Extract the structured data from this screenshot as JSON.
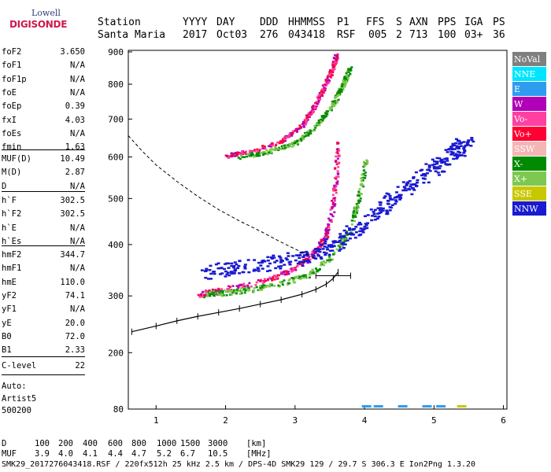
{
  "logo": {
    "line1": "Lowell",
    "line2": "DIGISONDE"
  },
  "header": {
    "labels": [
      "Station",
      "YYYY",
      "DAY",
      "DDD",
      "HHMMSS",
      "P1",
      "FFS",
      "S",
      "AXN",
      "PPS",
      "IGA",
      "PS"
    ],
    "values": [
      "Santa Maria",
      "2017",
      "Oct03",
      "276",
      "043418",
      "RSF",
      "005",
      "2",
      "713",
      "100",
      "03+",
      "36"
    ]
  },
  "scaled": {
    "group1": [
      {
        "label": "foF2",
        "value": "3.650"
      },
      {
        "label": "foF1",
        "value": "N/A"
      },
      {
        "label": "foF1p",
        "value": "N/A"
      },
      {
        "label": "foE",
        "value": "N/A"
      },
      {
        "label": "foEp",
        "value": "0.39"
      },
      {
        "label": "fxI",
        "value": "4.03"
      },
      {
        "label": "foEs",
        "value": "N/A"
      },
      {
        "label": "fmin",
        "value": "1.63"
      }
    ],
    "group2": [
      {
        "label": "MUF(D)",
        "value": "10.49"
      },
      {
        "label": "M(D)",
        "value": "2.87"
      },
      {
        "label": "D",
        "value": "N/A"
      }
    ],
    "group3": [
      {
        "label": "h`F",
        "value": "302.5"
      },
      {
        "label": "h`F2",
        "value": "302.5"
      },
      {
        "label": "h`E",
        "value": "N/A"
      },
      {
        "label": "h`Es",
        "value": "N/A"
      }
    ],
    "group4": [
      {
        "label": "hmF2",
        "value": "344.7"
      },
      {
        "label": "hmF1",
        "value": "N/A"
      },
      {
        "label": "hmE",
        "value": "110.0"
      },
      {
        "label": "yF2",
        "value": "74.1"
      },
      {
        "label": "yF1",
        "value": "N/A"
      },
      {
        "label": "yE",
        "value": "20.0"
      },
      {
        "label": "B0",
        "value": "72.0"
      },
      {
        "label": "B1",
        "value": "2.33"
      }
    ],
    "group5": [
      {
        "label": "C-level",
        "value": "22"
      }
    ]
  },
  "autoscaling": {
    "line1": "Auto:",
    "line2": "Artist5",
    "line3": "500200"
  },
  "legend": [
    {
      "label": "NoVal",
      "color": "#7f7f7f"
    },
    {
      "label": "NNE",
      "color": "#00e5ff"
    },
    {
      "label": "E",
      "color": "#2f9cf0"
    },
    {
      "label": "W",
      "color": "#b000b8"
    },
    {
      "label": "Vo-",
      "color": "#ff40a0"
    },
    {
      "label": "Vo+",
      "color": "#ff0033"
    },
    {
      "label": "SSW",
      "color": "#f4b5b5"
    },
    {
      "label": "X-",
      "color": "#008a00"
    },
    {
      "label": "X+",
      "color": "#7ec850"
    },
    {
      "label": "SSE",
      "color": "#c8c800"
    },
    {
      "label": "NNW",
      "color": "#1a1ad0"
    }
  ],
  "muf_table": {
    "d_label": "D",
    "distances": [
      "100",
      "200",
      "400",
      "600",
      "800",
      "1000",
      "1500",
      "3000"
    ],
    "d_unit": "[km]",
    "muf_label": "MUF",
    "mufs": [
      "3.9",
      "4.0",
      "4.1",
      "4.4",
      "4.7",
      "5.2",
      "6.7",
      "10.5"
    ],
    "muf_unit": "[MHz]"
  },
  "footer": "SMK29_2017276043418.RSF / 220fx512h 25 kHz 2.5 km / DPS-4D SMK29 129 / 29.7 S 306.3 E Ion2Png 1.3.20",
  "chart_data": {
    "type": "scatter",
    "title": "",
    "xlabel": "",
    "ylabel": "",
    "xlim": [
      0.6,
      6.05
    ],
    "ylim": [
      80,
      905
    ],
    "x_ticks": [
      1,
      2,
      3,
      4,
      5,
      6
    ],
    "y_ticks": [
      80,
      200,
      300,
      400,
      500,
      600,
      700,
      800,
      900
    ],
    "grid": false,
    "legend_position": "right",
    "profile": {
      "name": "electron density profile",
      "points": [
        [
          0.65,
          236
        ],
        [
          1.0,
          246
        ],
        [
          1.3,
          255
        ],
        [
          1.6,
          263
        ],
        [
          1.9,
          270
        ],
        [
          2.2,
          277
        ],
        [
          2.5,
          285
        ],
        [
          2.8,
          293
        ],
        [
          3.1,
          303
        ],
        [
          3.3,
          312
        ],
        [
          3.45,
          322
        ],
        [
          3.55,
          333
        ],
        [
          3.62,
          345
        ]
      ],
      "error_bar": {
        "x": 3.55,
        "x_low": 3.3,
        "x_high": 3.8,
        "y": 338
      }
    },
    "dashed_curve": {
      "points": [
        [
          0.6,
          655
        ],
        [
          0.8,
          615
        ],
        [
          1.0,
          580
        ],
        [
          1.3,
          540
        ],
        [
          1.6,
          505
        ],
        [
          1.9,
          475
        ],
        [
          2.2,
          450
        ],
        [
          2.5,
          428
        ],
        [
          2.8,
          405
        ],
        [
          3.1,
          384
        ],
        [
          3.3,
          372
        ]
      ]
    },
    "traces": [
      {
        "name": "o-lower",
        "x": [
          1.63,
          1.8,
          2.0,
          2.3,
          2.6,
          2.9,
          3.1,
          3.3,
          3.45,
          3.55,
          3.6,
          3.63
        ],
        "y": [
          303,
          308,
          312,
          320,
          330,
          345,
          362,
          385,
          420,
          480,
          550,
          640
        ],
        "series": [
          "Vo+",
          "Vo-",
          "W"
        ]
      },
      {
        "name": "x-lower",
        "x": [
          1.7,
          2.0,
          2.4,
          2.8,
          3.2,
          3.5,
          3.8,
          3.95,
          4.03
        ],
        "y": [
          302,
          306,
          312,
          322,
          340,
          370,
          430,
          520,
          600
        ],
        "series": [
          "X-",
          "X+"
        ]
      },
      {
        "name": "nnw-oblique",
        "x": [
          1.7,
          2.2,
          2.8,
          3.3,
          3.8,
          4.2,
          4.6,
          5.0,
          5.3,
          5.5
        ],
        "y": [
          345,
          355,
          365,
          380,
          420,
          470,
          520,
          570,
          610,
          645
        ],
        "series": [
          "NNW"
        ]
      },
      {
        "name": "o-upper",
        "x": [
          2.0,
          2.4,
          2.8,
          3.1,
          3.3,
          3.45,
          3.55,
          3.6
        ],
        "y": [
          602,
          615,
          640,
          680,
          740,
          800,
          850,
          890
        ],
        "series": [
          "Vo+",
          "Vo-",
          "W"
        ]
      },
      {
        "name": "x-upper",
        "x": [
          2.2,
          2.6,
          3.0,
          3.3,
          3.55,
          3.7,
          3.8
        ],
        "y": [
          600,
          612,
          635,
          680,
          740,
          800,
          850
        ],
        "series": [
          "X-",
          "X+"
        ]
      }
    ]
  }
}
